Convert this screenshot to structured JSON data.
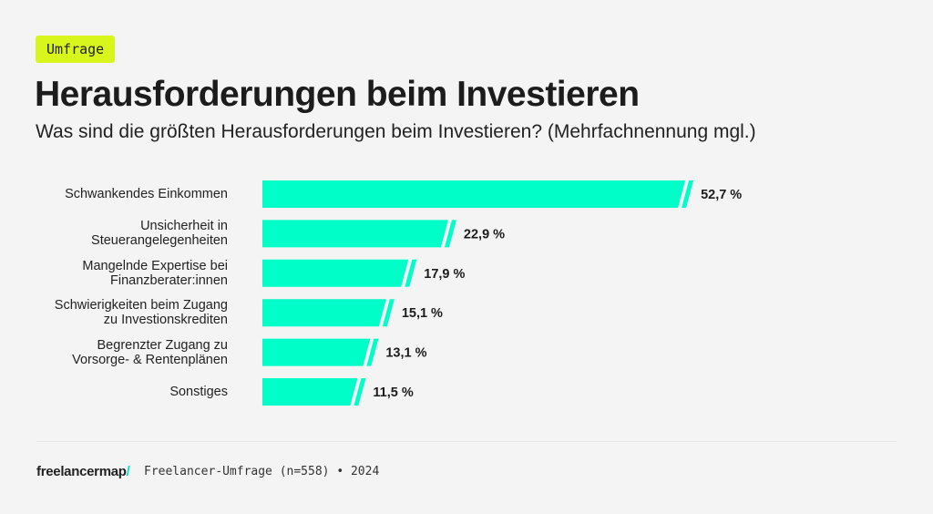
{
  "tag": "Umfrage",
  "title": "Herausforderungen beim Investieren",
  "subtitle": "Was sind die größten Herausforderungen beim Investieren? (Mehrfachnennung mgl.)",
  "chart_data": {
    "type": "bar",
    "orientation": "horizontal",
    "categories": [
      "Schwankendes Einkommen",
      "Unsicherheit in Steuerangelegenheiten",
      "Mangelnde Expertise bei Finanzberater:innen",
      "Schwierigkeiten beim Zugang zu Investionskrediten",
      "Begrenzter Zugang zu Vorsorge- & Rentenplänen",
      "Sonstiges"
    ],
    "category_lines": [
      [
        "Schwankendes Einkommen"
      ],
      [
        "Unsicherheit in",
        "Steuerangelegenheiten"
      ],
      [
        "Mangelnde Expertise bei",
        "Finanzberater:innen"
      ],
      [
        "Schwierigkeiten beim Zugang",
        "zu Investionskrediten"
      ],
      [
        "Begrenzter Zugang zu",
        "Vorsorge- & Rentenplänen"
      ],
      [
        "Sonstiges"
      ]
    ],
    "values": [
      52.7,
      22.9,
      17.9,
      15.1,
      13.1,
      11.5
    ],
    "value_labels": [
      "52,7 %",
      "22,9 %",
      "17,9 %",
      "15,1 %",
      "13,1 %",
      "11,5 %"
    ],
    "unit": "%",
    "grid": false,
    "bar_color": "#00ffc8"
  },
  "footer": {
    "logo": "freelancermap",
    "logo_slash": "/",
    "source": "Freelancer-Umfrage (n=558) • 2024"
  }
}
